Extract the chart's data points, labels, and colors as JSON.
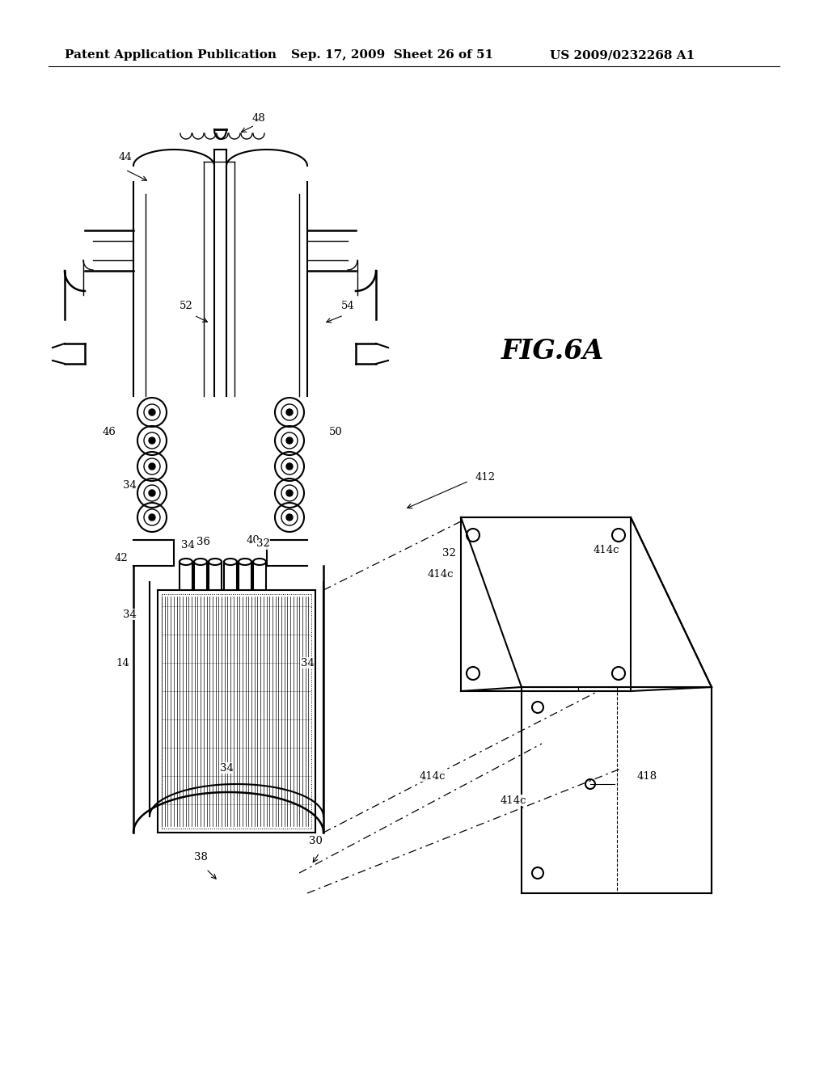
{
  "background_color": "#ffffff",
  "header_left": "Patent Application Publication",
  "header_center": "Sep. 17, 2009  Sheet 26 of 51",
  "header_right": "US 2009/0232268 A1",
  "figure_label": "FIG.6A",
  "header_fontsize": 11,
  "figure_label_fontsize": 24,
  "fig_width": 10.24,
  "fig_height": 13.2,
  "dpi": 100
}
